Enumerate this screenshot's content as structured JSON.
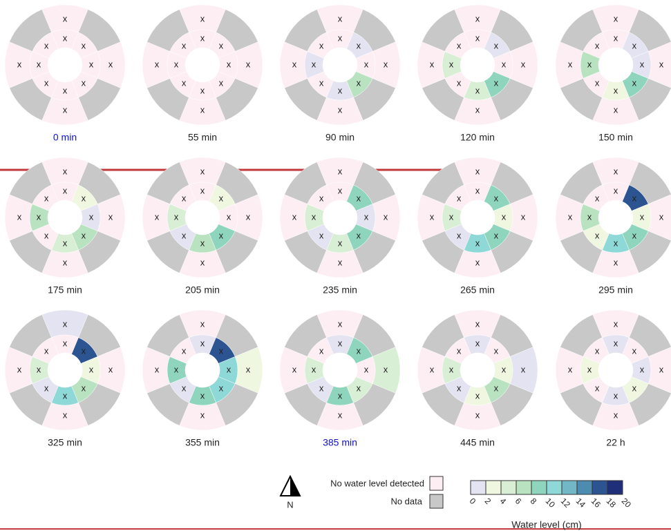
{
  "chart_data": {
    "type": "ring-panels",
    "marker": "x",
    "no_water_label": "No water level detected",
    "no_water_color": "#fdeef4",
    "no_data_label": "No data",
    "no_data_color": "#c8c8c8",
    "north_label": "N",
    "scale_title": "Water level (cm)",
    "bins": [
      0,
      2,
      4,
      6,
      8,
      10,
      12,
      14,
      16,
      18,
      20
    ],
    "bin_colors": [
      "#e3e3f1",
      "#f0f7e1",
      "#d9efd5",
      "#b8e2c0",
      "#8fd5be",
      "#8fd8d8",
      "#72b7c6",
      "#4e8bb0",
      "#2b5490",
      "#1f2f7a"
    ],
    "panels": [
      {
        "label": "0 min",
        "label_color": "#1010d0",
        "outer": [
          null,
          null,
          null,
          null
        ],
        "inner": [
          null,
          null,
          null,
          null,
          null,
          null,
          null,
          null
        ]
      },
      {
        "label": "55 min",
        "outer": [
          null,
          null,
          null,
          null
        ],
        "inner": [
          null,
          null,
          null,
          null,
          null,
          null,
          null,
          null
        ]
      },
      {
        "label": "90 min",
        "outer": [
          null,
          null,
          null,
          null
        ],
        "inner": [
          null,
          1,
          null,
          7,
          1,
          null,
          1,
          null
        ]
      },
      {
        "label": "120 min",
        "outer": [
          null,
          null,
          null,
          null
        ],
        "inner": [
          null,
          1,
          null,
          9,
          5,
          null,
          5,
          null
        ]
      },
      {
        "label": "150 min",
        "outer": [
          null,
          null,
          null,
          null
        ],
        "inner": [
          null,
          1,
          1,
          9,
          3,
          null,
          7,
          null
        ]
      },
      {
        "label": "175 min",
        "outer": [
          null,
          null,
          null,
          null
        ],
        "inner": [
          null,
          3,
          1,
          7,
          5,
          null,
          7,
          null
        ]
      },
      {
        "label": "205 min",
        "outer": [
          null,
          null,
          null,
          null
        ],
        "inner": [
          null,
          3,
          null,
          9,
          7,
          1,
          5,
          null
        ]
      },
      {
        "label": "235 min",
        "outer": [
          null,
          null,
          null,
          null
        ],
        "inner": [
          null,
          9,
          1,
          9,
          5,
          1,
          5,
          null
        ]
      },
      {
        "label": "265 min",
        "outer": [
          null,
          null,
          null,
          null
        ],
        "inner": [
          null,
          9,
          3,
          9,
          11,
          1,
          5,
          null
        ]
      },
      {
        "label": "295 min",
        "outer": [
          null,
          null,
          null,
          null
        ],
        "inner": [
          null,
          17,
          3,
          9,
          11,
          3,
          7,
          null
        ]
      },
      {
        "label": "325 min",
        "outer": [
          1,
          null,
          null,
          null
        ],
        "inner": [
          null,
          17,
          3,
          7,
          11,
          1,
          5,
          null
        ]
      },
      {
        "label": "355 min",
        "outer": [
          null,
          3,
          null,
          null
        ],
        "inner": [
          1,
          17,
          11,
          11,
          9,
          1,
          9,
          null
        ]
      },
      {
        "label": "385 min",
        "label_color": "#1010d0",
        "outer": [
          null,
          5,
          null,
          null
        ],
        "inner": [
          1,
          9,
          null,
          5,
          9,
          1,
          5,
          null
        ]
      },
      {
        "label": "445 min",
        "outer": [
          null,
          1,
          null,
          null
        ],
        "inner": [
          1,
          null,
          3,
          7,
          3,
          1,
          5,
          null
        ]
      },
      {
        "label": "22 h",
        "outer": [
          null,
          null,
          null,
          null
        ],
        "inner": [
          1,
          null,
          1,
          3,
          1,
          null,
          3,
          null
        ]
      }
    ]
  }
}
